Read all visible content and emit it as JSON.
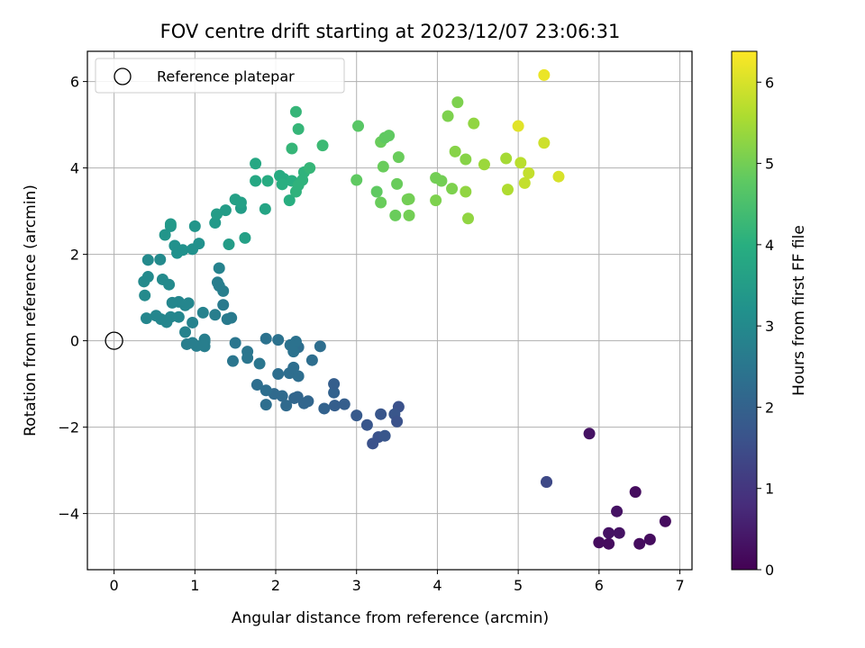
{
  "chart_data": {
    "type": "scatter",
    "title": "FOV centre drift starting at 2023/12/07 23:06:31",
    "xlabel": "Angular distance from reference (arcmin)",
    "ylabel": "Rotation from reference (arcmin)",
    "xlim": [
      -0.33,
      7.15
    ],
    "ylim": [
      -5.3,
      6.7
    ],
    "x_ticks": [
      0,
      1,
      2,
      3,
      4,
      5,
      6,
      7
    ],
    "y_ticks": [
      -4,
      -2,
      0,
      2,
      4,
      6
    ],
    "grid": true,
    "legend": {
      "placement": "top-left",
      "entries": [
        "Reference platepar"
      ]
    },
    "reference_point": {
      "x": 0,
      "y": 0
    },
    "colorbar": {
      "label": "Hours from first FF file",
      "range": [
        0,
        6.38
      ],
      "ticks": [
        0,
        1,
        2,
        3,
        4,
        5,
        6
      ],
      "colormap": "viridis"
    },
    "points": [
      [
        6.45,
        -3.5,
        0.2
      ],
      [
        5.88,
        -2.15,
        0.3
      ],
      [
        6.22,
        -3.95,
        0.3
      ],
      [
        6.82,
        -4.18,
        0.2
      ],
      [
        6.63,
        -4.6,
        0.2
      ],
      [
        6.5,
        -4.7,
        0.2
      ],
      [
        6.12,
        -4.7,
        0.2
      ],
      [
        6.0,
        -4.67,
        0.2
      ],
      [
        6.25,
        -4.45,
        0.3
      ],
      [
        6.12,
        -4.45,
        0.3
      ],
      [
        5.35,
        -3.27,
        1.5
      ],
      [
        5.35,
        -3.27,
        1.4
      ],
      [
        3.52,
        -1.53,
        1.6
      ],
      [
        3.47,
        -1.7,
        1.7
      ],
      [
        3.5,
        -1.87,
        1.6
      ],
      [
        3.3,
        -1.7,
        1.7
      ],
      [
        3.27,
        -2.23,
        1.6
      ],
      [
        3.35,
        -2.2,
        1.7
      ],
      [
        3.2,
        -2.38,
        1.6
      ],
      [
        3.13,
        -1.95,
        1.7
      ],
      [
        3.0,
        -1.73,
        1.8
      ],
      [
        2.85,
        -1.47,
        1.9
      ],
      [
        2.73,
        -1.5,
        1.9
      ],
      [
        2.72,
        -1.2,
        2.0
      ],
      [
        2.72,
        -1.0,
        1.9
      ],
      [
        2.6,
        -1.57,
        2.0
      ],
      [
        2.35,
        -1.45,
        2.1
      ],
      [
        2.4,
        -1.4,
        2.1
      ],
      [
        2.27,
        -1.3,
        2.1
      ],
      [
        2.23,
        -1.33,
        2.1
      ],
      [
        2.13,
        -1.5,
        2.2
      ],
      [
        2.08,
        -1.28,
        2.2
      ],
      [
        1.98,
        -1.23,
        2.2
      ],
      [
        1.88,
        -1.48,
        2.3
      ],
      [
        1.88,
        -1.15,
        2.3
      ],
      [
        1.77,
        -1.02,
        2.3
      ],
      [
        2.03,
        -0.77,
        2.3
      ],
      [
        2.17,
        -0.75,
        2.3
      ],
      [
        2.22,
        -0.62,
        2.3
      ],
      [
        2.28,
        -0.82,
        2.3
      ],
      [
        2.45,
        -0.45,
        2.3
      ],
      [
        2.55,
        -0.13,
        2.3
      ],
      [
        2.28,
        -0.15,
        2.3
      ],
      [
        2.25,
        -0.02,
        2.4
      ],
      [
        2.18,
        -0.1,
        2.4
      ],
      [
        2.22,
        -0.25,
        2.4
      ],
      [
        2.03,
        0.02,
        2.4
      ],
      [
        1.88,
        0.05,
        2.4
      ],
      [
        1.8,
        -0.53,
        2.5
      ],
      [
        1.65,
        -0.25,
        2.5
      ],
      [
        1.65,
        -0.4,
        2.5
      ],
      [
        1.5,
        -0.05,
        2.5
      ],
      [
        1.47,
        -0.47,
        2.5
      ],
      [
        1.12,
        0.03,
        2.7
      ],
      [
        1.12,
        -0.03,
        2.7
      ],
      [
        1.12,
        -0.13,
        2.7
      ],
      [
        1.02,
        -0.12,
        2.7
      ],
      [
        0.97,
        -0.05,
        2.7
      ],
      [
        0.9,
        -0.08,
        2.7
      ],
      [
        0.88,
        0.2,
        2.8
      ],
      [
        0.97,
        0.42,
        2.8
      ],
      [
        1.1,
        0.65,
        2.8
      ],
      [
        0.92,
        0.87,
        2.9
      ],
      [
        0.88,
        0.82,
        2.9
      ],
      [
        0.8,
        0.9,
        2.9
      ],
      [
        0.72,
        0.88,
        2.9
      ],
      [
        0.8,
        0.55,
        2.9
      ],
      [
        0.7,
        0.55,
        2.9
      ],
      [
        0.65,
        0.47,
        2.9
      ],
      [
        0.65,
        0.43,
        2.9
      ],
      [
        0.58,
        0.5,
        2.9
      ],
      [
        0.52,
        0.58,
        2.9
      ],
      [
        0.4,
        0.52,
        2.9
      ],
      [
        0.38,
        1.05,
        3.0
      ],
      [
        0.37,
        1.37,
        3.0
      ],
      [
        0.42,
        1.48,
        3.0
      ],
      [
        0.42,
        1.87,
        3.0
      ],
      [
        0.57,
        1.88,
        3.0
      ],
      [
        0.6,
        1.42,
        3.0
      ],
      [
        0.68,
        1.3,
        3.0
      ],
      [
        1.25,
        0.6,
        2.7
      ],
      [
        1.45,
        0.53,
        2.6
      ],
      [
        1.4,
        0.5,
        2.6
      ],
      [
        1.35,
        0.83,
        2.6
      ],
      [
        1.35,
        1.15,
        2.7
      ],
      [
        1.3,
        1.27,
        2.7
      ],
      [
        1.28,
        1.35,
        2.7
      ],
      [
        1.3,
        1.68,
        2.8
      ],
      [
        0.75,
        2.2,
        3.2
      ],
      [
        0.78,
        2.03,
        3.2
      ],
      [
        0.85,
        2.1,
        3.2
      ],
      [
        0.97,
        2.12,
        3.2
      ],
      [
        1.05,
        2.25,
        3.2
      ],
      [
        1.0,
        2.65,
        3.3
      ],
      [
        0.63,
        2.45,
        3.3
      ],
      [
        0.7,
        2.65,
        3.3
      ],
      [
        0.7,
        2.7,
        3.4
      ],
      [
        1.25,
        2.73,
        3.4
      ],
      [
        1.27,
        2.93,
        3.5
      ],
      [
        1.38,
        3.02,
        3.5
      ],
      [
        1.42,
        2.23,
        3.5
      ],
      [
        1.57,
        3.07,
        3.5
      ],
      [
        1.57,
        3.2,
        3.6
      ],
      [
        1.5,
        3.27,
        3.6
      ],
      [
        1.62,
        2.38,
        3.6
      ],
      [
        1.87,
        3.05,
        3.7
      ],
      [
        1.75,
        3.7,
        3.8
      ],
      [
        1.75,
        4.1,
        3.8
      ],
      [
        1.9,
        3.7,
        3.9
      ],
      [
        2.05,
        3.82,
        3.9
      ],
      [
        2.1,
        3.75,
        3.9
      ],
      [
        2.08,
        3.62,
        4.0
      ],
      [
        2.2,
        3.7,
        4.0
      ],
      [
        2.17,
        3.25,
        4.0
      ],
      [
        2.25,
        3.45,
        4.1
      ],
      [
        2.28,
        3.6,
        4.1
      ],
      [
        2.33,
        3.72,
        4.1
      ],
      [
        2.35,
        3.9,
        4.1
      ],
      [
        2.42,
        4.0,
        4.2
      ],
      [
        2.2,
        4.45,
        4.2
      ],
      [
        2.28,
        4.9,
        4.2
      ],
      [
        2.25,
        5.3,
        4.2
      ],
      [
        2.58,
        4.52,
        4.3
      ],
      [
        3.02,
        4.97,
        4.7
      ],
      [
        3.0,
        3.72,
        4.8
      ],
      [
        3.25,
        3.45,
        4.8
      ],
      [
        3.3,
        3.2,
        4.9
      ],
      [
        3.3,
        4.6,
        4.9
      ],
      [
        3.35,
        4.7,
        4.8
      ],
      [
        3.4,
        4.75,
        4.8
      ],
      [
        3.33,
        4.03,
        4.9
      ],
      [
        3.48,
        2.9,
        4.9
      ],
      [
        3.5,
        3.63,
        4.9
      ],
      [
        3.52,
        4.25,
        4.9
      ],
      [
        3.63,
        3.27,
        5.0
      ],
      [
        3.65,
        3.28,
        5.0
      ],
      [
        3.65,
        2.9,
        5.0
      ],
      [
        3.98,
        3.77,
        5.0
      ],
      [
        4.05,
        3.7,
        5.0
      ],
      [
        3.98,
        3.25,
        5.1
      ],
      [
        4.13,
        5.2,
        5.1
      ],
      [
        4.18,
        3.52,
        5.1
      ],
      [
        4.25,
        5.52,
        5.1
      ],
      [
        4.22,
        4.38,
        5.2
      ],
      [
        4.35,
        4.2,
        5.2
      ],
      [
        4.35,
        3.45,
        5.3
      ],
      [
        4.38,
        2.83,
        5.3
      ],
      [
        4.45,
        5.03,
        5.3
      ],
      [
        4.58,
        4.08,
        5.4
      ],
      [
        4.85,
        4.22,
        5.5
      ],
      [
        4.87,
        3.5,
        5.6
      ],
      [
        5.0,
        4.97,
        6.1
      ],
      [
        5.03,
        4.12,
        5.7
      ],
      [
        5.08,
        3.65,
        5.8
      ],
      [
        5.13,
        3.88,
        5.8
      ],
      [
        5.32,
        4.58,
        5.9
      ],
      [
        5.32,
        6.15,
        6.2
      ],
      [
        5.5,
        3.8,
        6.0
      ]
    ]
  }
}
